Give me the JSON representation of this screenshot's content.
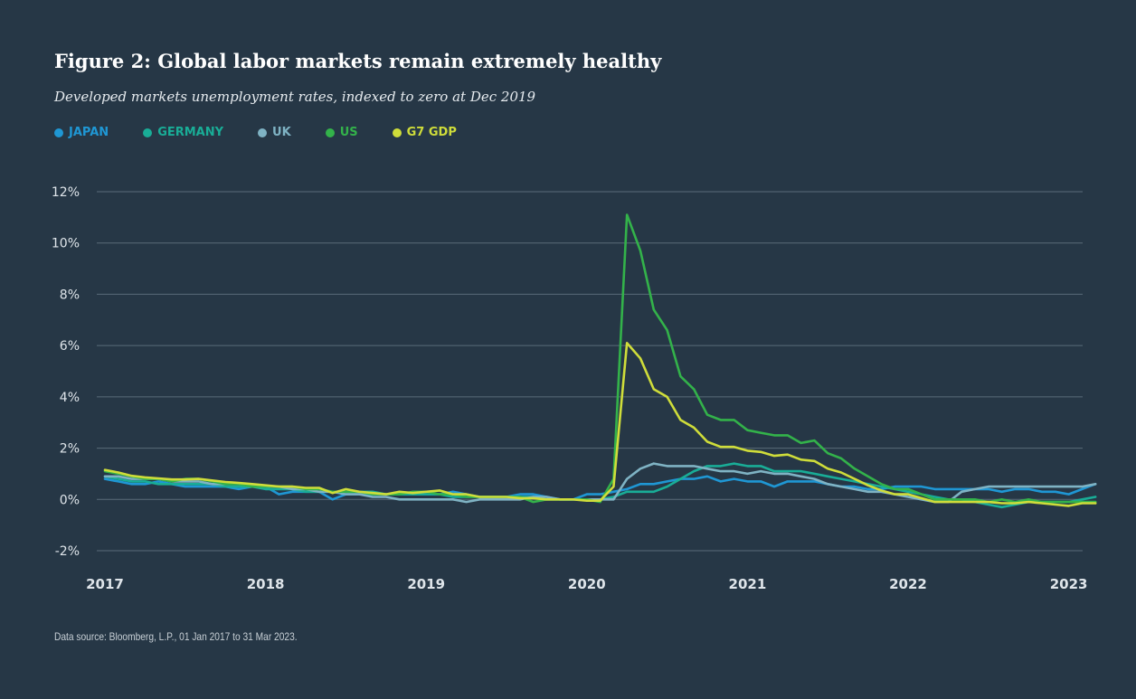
{
  "title": "Figure 2: Global labor markets remain extremely healthy",
  "subtitle": "Developed markets unemployment rates, indexed to zero at Dec 2019",
  "footnote": "Data source: Bloomberg, L.P., 01 Jan 2017 to 31 Mar 2023.",
  "colors": {
    "background": "#263746",
    "grid": "#5a6b79",
    "tick_label": "#dfe5ea",
    "JAPAN": "#1f97d4",
    "GERMANY": "#19ad97",
    "UK": "#7fb3c4",
    "US": "#33b24a",
    "G7 GDP": "#cfdd3a"
  },
  "legend": [
    {
      "label": "JAPAN",
      "color": "#1f97d4"
    },
    {
      "label": "GERMANY",
      "color": "#19ad97"
    },
    {
      "label": "UK",
      "color": "#7fb3c4"
    },
    {
      "label": "US",
      "color": "#33b24a"
    },
    {
      "label": "G7 GDP",
      "color": "#cfdd3a"
    }
  ],
  "chart_data": {
    "type": "line",
    "title": "Figure 2: Global labor markets remain extremely healthy",
    "subtitle": "Developed markets unemployment rates, indexed to zero at Dec 2019",
    "xlabel": "",
    "ylabel": "",
    "x_tick_labels": [
      "2017",
      "2018",
      "2019",
      "2020",
      "2021",
      "2022",
      "2023"
    ],
    "x_tick_values": [
      "2017-01",
      "2018-01",
      "2019-01",
      "2020-01",
      "2021-01",
      "2022-01",
      "2023-01"
    ],
    "xlim": [
      "2017-01",
      "2023-03"
    ],
    "y_tick_labels": [
      "12%",
      "10%",
      "8%",
      "6%",
      "4%",
      "2%",
      "0%",
      "-2%"
    ],
    "y_tick_values": [
      12,
      10,
      8,
      6,
      4,
      2,
      0,
      -2
    ],
    "ylim": [
      -2,
      12
    ],
    "grid": true,
    "legend_position": "top-left",
    "x": [
      "2017-01",
      "2017-02",
      "2017-03",
      "2017-04",
      "2017-05",
      "2017-06",
      "2017-07",
      "2017-08",
      "2017-09",
      "2017-10",
      "2017-11",
      "2017-12",
      "2018-01",
      "2018-02",
      "2018-03",
      "2018-04",
      "2018-05",
      "2018-06",
      "2018-07",
      "2018-08",
      "2018-09",
      "2018-10",
      "2018-11",
      "2018-12",
      "2019-01",
      "2019-02",
      "2019-03",
      "2019-04",
      "2019-05",
      "2019-06",
      "2019-07",
      "2019-08",
      "2019-09",
      "2019-10",
      "2019-11",
      "2019-12",
      "2020-01",
      "2020-02",
      "2020-03",
      "2020-04",
      "2020-05",
      "2020-06",
      "2020-07",
      "2020-08",
      "2020-09",
      "2020-10",
      "2020-11",
      "2020-12",
      "2021-01",
      "2021-02",
      "2021-03",
      "2021-04",
      "2021-05",
      "2021-06",
      "2021-07",
      "2021-08",
      "2021-09",
      "2021-10",
      "2021-11",
      "2021-12",
      "2022-01",
      "2022-02",
      "2022-03",
      "2022-04",
      "2022-05",
      "2022-06",
      "2022-07",
      "2022-08",
      "2022-09",
      "2022-10",
      "2022-11",
      "2022-12",
      "2023-01",
      "2023-02",
      "2023-03"
    ],
    "series": [
      {
        "name": "JAPAN",
        "values": [
          0.8,
          0.7,
          0.6,
          0.6,
          0.7,
          0.6,
          0.5,
          0.5,
          0.5,
          0.5,
          0.4,
          0.5,
          0.5,
          0.2,
          0.3,
          0.3,
          0.3,
          0.0,
          0.2,
          0.2,
          0.2,
          0.2,
          0.2,
          0.2,
          0.2,
          0.2,
          0.3,
          0.2,
          0.1,
          0.1,
          0.1,
          0.2,
          0.2,
          0.1,
          0.0,
          0.0,
          0.2,
          0.2,
          0.3,
          0.4,
          0.6,
          0.6,
          0.7,
          0.8,
          0.8,
          0.9,
          0.7,
          0.8,
          0.7,
          0.7,
          0.5,
          0.7,
          0.7,
          0.7,
          0.6,
          0.5,
          0.5,
          0.4,
          0.4,
          0.5,
          0.5,
          0.5,
          0.4,
          0.4,
          0.4,
          0.4,
          0.4,
          0.3,
          0.4,
          0.4,
          0.3,
          0.3,
          0.2,
          0.4,
          0.6
        ]
      },
      {
        "name": "GERMANY",
        "values": [
          0.9,
          0.8,
          0.7,
          0.7,
          0.6,
          0.6,
          0.6,
          0.6,
          0.6,
          0.5,
          0.5,
          0.5,
          0.4,
          0.4,
          0.4,
          0.3,
          0.3,
          0.3,
          0.3,
          0.3,
          0.3,
          0.2,
          0.2,
          0.2,
          0.2,
          0.2,
          0.1,
          0.1,
          0.1,
          0.1,
          0.1,
          0.1,
          0.1,
          0.0,
          0.0,
          0.0,
          0.0,
          0.0,
          0.1,
          0.3,
          0.3,
          0.3,
          0.5,
          0.8,
          1.1,
          1.3,
          1.3,
          1.4,
          1.3,
          1.3,
          1.1,
          1.1,
          1.1,
          1.0,
          0.9,
          0.8,
          0.7,
          0.6,
          0.5,
          0.4,
          0.3,
          0.2,
          0.1,
          0.0,
          0.0,
          -0.1,
          -0.2,
          -0.3,
          -0.2,
          -0.1,
          -0.1,
          -0.1,
          -0.1,
          0.0,
          0.1
        ]
      },
      {
        "name": "UK",
        "values": [
          0.9,
          0.9,
          0.8,
          0.8,
          0.8,
          0.7,
          0.7,
          0.7,
          0.6,
          0.6,
          0.6,
          0.5,
          0.5,
          0.5,
          0.4,
          0.4,
          0.3,
          0.3,
          0.2,
          0.2,
          0.1,
          0.1,
          0.0,
          0.0,
          0.0,
          0.0,
          0.0,
          -0.1,
          0.0,
          0.0,
          0.0,
          0.0,
          0.1,
          0.1,
          0.0,
          0.0,
          0.0,
          0.0,
          0.0,
          0.8,
          1.2,
          1.4,
          1.3,
          1.3,
          1.3,
          1.2,
          1.1,
          1.1,
          1.0,
          1.1,
          1.0,
          1.0,
          0.9,
          0.8,
          0.6,
          0.5,
          0.4,
          0.3,
          0.3,
          0.2,
          0.1,
          0.0,
          -0.1,
          -0.1,
          0.3,
          0.4,
          0.5,
          0.5,
          0.5,
          0.5,
          0.5,
          0.5,
          0.5,
          0.5,
          0.6
        ]
      },
      {
        "name": "US",
        "values": [
          1.1,
          1.0,
          0.9,
          0.8,
          0.8,
          0.7,
          0.8,
          0.8,
          0.7,
          0.6,
          0.6,
          0.5,
          0.5,
          0.5,
          0.5,
          0.4,
          0.4,
          0.3,
          0.3,
          0.3,
          0.2,
          0.2,
          0.2,
          0.3,
          0.3,
          0.2,
          0.2,
          0.1,
          0.1,
          0.1,
          0.1,
          0.1,
          -0.1,
          0.0,
          0.0,
          0.0,
          0.0,
          -0.1,
          0.8,
          11.1,
          9.7,
          7.4,
          6.6,
          4.8,
          4.3,
          3.3,
          3.1,
          3.1,
          2.7,
          2.6,
          2.5,
          2.5,
          2.2,
          2.3,
          1.8,
          1.6,
          1.2,
          0.9,
          0.6,
          0.4,
          0.4,
          0.2,
          0.0,
          0.0,
          0.0,
          0.0,
          -0.1,
          0.0,
          -0.1,
          0.0,
          -0.1,
          -0.1,
          -0.1,
          -0.1,
          -0.1
        ]
      },
      {
        "name": "G7 GDP",
        "values": [
          1.15,
          1.05,
          0.92,
          0.86,
          0.82,
          0.78,
          0.78,
          0.8,
          0.74,
          0.68,
          0.64,
          0.6,
          0.55,
          0.5,
          0.5,
          0.45,
          0.45,
          0.25,
          0.4,
          0.3,
          0.25,
          0.2,
          0.3,
          0.25,
          0.3,
          0.35,
          0.2,
          0.2,
          0.1,
          0.1,
          0.1,
          0.05,
          0.05,
          0.0,
          0.0,
          0.0,
          -0.05,
          -0.05,
          0.5,
          6.1,
          5.5,
          4.3,
          4.0,
          3.1,
          2.8,
          2.25,
          2.05,
          2.05,
          1.9,
          1.85,
          1.7,
          1.75,
          1.55,
          1.5,
          1.2,
          1.05,
          0.8,
          0.55,
          0.35,
          0.2,
          0.2,
          0.05,
          -0.1,
          -0.1,
          -0.1,
          -0.1,
          -0.1,
          -0.15,
          -0.15,
          -0.1,
          -0.15,
          -0.2,
          -0.25,
          -0.15,
          -0.15
        ]
      }
    ]
  }
}
